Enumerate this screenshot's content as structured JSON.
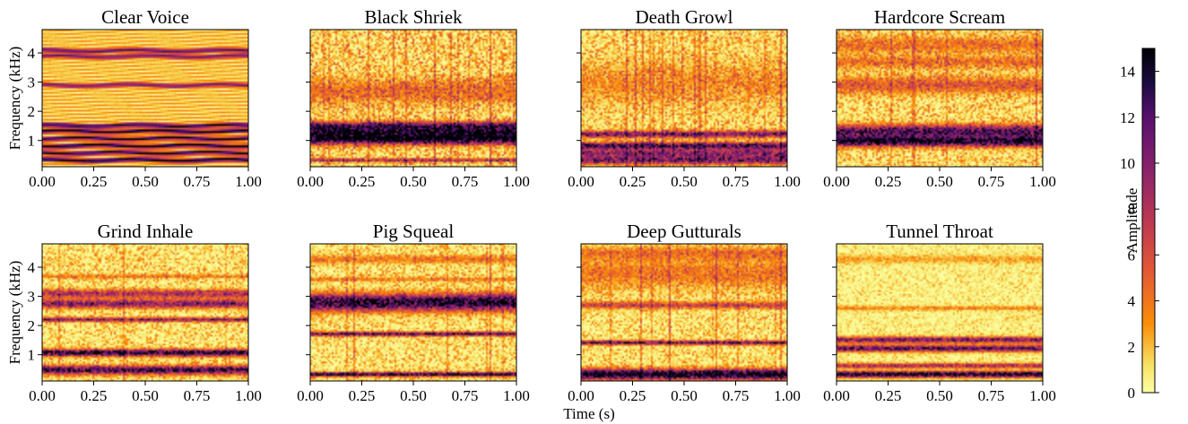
{
  "chart_data": {
    "type": "heatmap",
    "figure_xlabel": "Time (s)",
    "ylabel": "Frequency (kHz)",
    "xlim": [
      0,
      1
    ],
    "ylim": [
      0.1,
      4.8
    ],
    "x_ticks": [
      "0.00",
      "0.25",
      "0.50",
      "0.75",
      "1.00"
    ],
    "y_ticks": [
      "1",
      "2",
      "3",
      "4"
    ],
    "y_tick_values": [
      1,
      2,
      3,
      4
    ],
    "colormap": "inferno_r",
    "colorbar": {
      "label": "Amplitude",
      "range": [
        0,
        15
      ],
      "ticks": [
        "0",
        "2",
        "4",
        "6",
        "8",
        "10",
        "12",
        "14"
      ],
      "tick_values": [
        0,
        2,
        4,
        6,
        8,
        10,
        12,
        14
      ]
    },
    "grid": false,
    "panels": [
      {
        "title": "Clear Voice",
        "pattern": "harmonic",
        "noise": 0.4,
        "spikes": 0,
        "bands": [
          {
            "freq": 0.3,
            "width": 0.05,
            "amp": 13
          },
          {
            "freq": 0.55,
            "width": 0.05,
            "amp": 12
          },
          {
            "freq": 0.8,
            "width": 0.05,
            "amp": 13
          },
          {
            "freq": 1.05,
            "width": 0.05,
            "amp": 12
          },
          {
            "freq": 1.3,
            "width": 0.05,
            "amp": 13
          },
          {
            "freq": 1.5,
            "width": 0.05,
            "amp": 12
          },
          {
            "freq": 2.9,
            "width": 0.05,
            "amp": 9
          },
          {
            "freq": 3.9,
            "width": 0.05,
            "amp": 9
          },
          {
            "freq": 4.1,
            "width": 0.05,
            "amp": 10
          }
        ]
      },
      {
        "title": "Black Shriek",
        "pattern": "noisy",
        "noise": 3.5,
        "spikes": 1.5,
        "bands": [
          {
            "freq": 0.3,
            "width": 0.04,
            "amp": 7
          },
          {
            "freq": 1.0,
            "width": 0.12,
            "amp": 10
          },
          {
            "freq": 1.25,
            "width": 0.15,
            "amp": 12
          },
          {
            "freq": 1.5,
            "width": 0.1,
            "amp": 8
          },
          {
            "freq": 2.7,
            "width": 0.3,
            "amp": 3
          }
        ]
      },
      {
        "title": "Death Growl",
        "pattern": "noisy",
        "noise": 3,
        "spikes": 1.5,
        "bands": [
          {
            "freq": 0.3,
            "width": 0.1,
            "amp": 9
          },
          {
            "freq": 0.55,
            "width": 0.1,
            "amp": 8
          },
          {
            "freq": 0.8,
            "width": 0.08,
            "amp": 11
          },
          {
            "freq": 1.2,
            "width": 0.08,
            "amp": 9
          },
          {
            "freq": 3.0,
            "width": 0.5,
            "amp": 2
          }
        ]
      },
      {
        "title": "Hardcore Scream",
        "pattern": "noisy",
        "noise": 3,
        "spikes": 1,
        "bands": [
          {
            "freq": 0.95,
            "width": 0.12,
            "amp": 13
          },
          {
            "freq": 1.3,
            "width": 0.15,
            "amp": 11
          },
          {
            "freq": 2.9,
            "width": 0.2,
            "amp": 4
          },
          {
            "freq": 3.7,
            "width": 0.15,
            "amp": 3
          },
          {
            "freq": 4.3,
            "width": 0.2,
            "amp": 3
          }
        ]
      },
      {
        "title": "Grind Inhale",
        "pattern": "noisy",
        "noise": 2.5,
        "spikes": 0.5,
        "bands": [
          {
            "freq": 0.45,
            "width": 0.1,
            "amp": 12
          },
          {
            "freq": 1.05,
            "width": 0.08,
            "amp": 13
          },
          {
            "freq": 2.2,
            "width": 0.05,
            "amp": 9
          },
          {
            "freq": 2.75,
            "width": 0.1,
            "amp": 9
          },
          {
            "freq": 3.1,
            "width": 0.1,
            "amp": 7
          },
          {
            "freq": 3.7,
            "width": 0.05,
            "amp": 3
          }
        ]
      },
      {
        "title": "Pig Squeal",
        "pattern": "noisy",
        "noise": 2.5,
        "spikes": 0.5,
        "bands": [
          {
            "freq": 0.3,
            "width": 0.05,
            "amp": 13
          },
          {
            "freq": 1.7,
            "width": 0.05,
            "amp": 11
          },
          {
            "freq": 2.8,
            "width": 0.2,
            "amp": 13
          },
          {
            "freq": 3.6,
            "width": 0.05,
            "amp": 3
          },
          {
            "freq": 4.3,
            "width": 0.1,
            "amp": 3
          }
        ]
      },
      {
        "title": "Deep Gutturals",
        "pattern": "noisy",
        "noise": 2.5,
        "spikes": 1,
        "bands": [
          {
            "freq": 0.3,
            "width": 0.12,
            "amp": 15
          },
          {
            "freq": 1.4,
            "width": 0.05,
            "amp": 10
          },
          {
            "freq": 2.7,
            "width": 0.08,
            "amp": 6
          },
          {
            "freq": 3.8,
            "width": 0.35,
            "amp": 3
          },
          {
            "freq": 4.5,
            "width": 0.15,
            "amp": 3
          }
        ]
      },
      {
        "title": "Tunnel Throat",
        "pattern": "noisy",
        "noise": 1.5,
        "spikes": 0.5,
        "bands": [
          {
            "freq": 0.3,
            "width": 0.07,
            "amp": 15
          },
          {
            "freq": 0.6,
            "width": 0.06,
            "amp": 8
          },
          {
            "freq": 1.2,
            "width": 0.08,
            "amp": 11
          },
          {
            "freq": 1.5,
            "width": 0.07,
            "amp": 10
          },
          {
            "freq": 2.6,
            "width": 0.05,
            "amp": 3
          },
          {
            "freq": 4.3,
            "width": 0.1,
            "amp": 2
          }
        ]
      }
    ]
  }
}
